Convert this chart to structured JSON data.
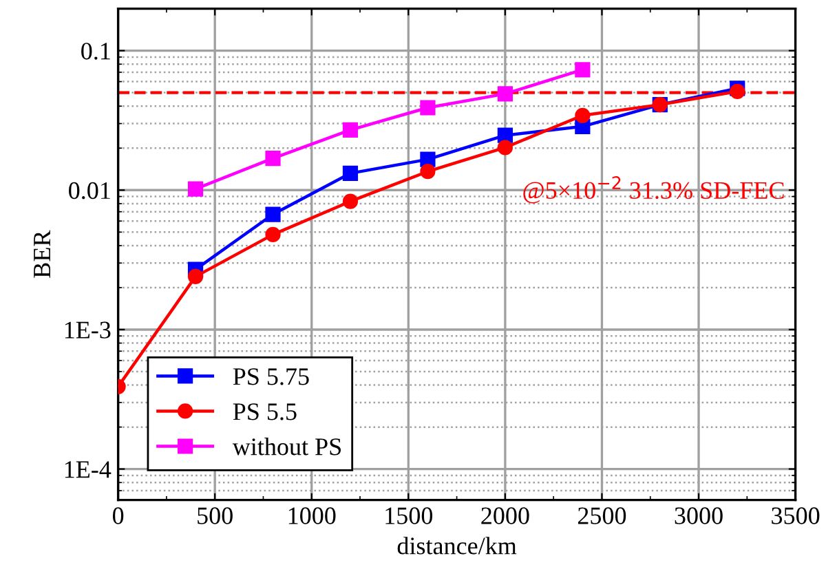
{
  "chart_data": {
    "type": "line",
    "xlabel": "distance/km",
    "ylabel": "BER",
    "log": "y",
    "xlim": [
      0,
      3500
    ],
    "xticks": [
      0,
      500,
      1000,
      1500,
      2000,
      2500,
      3000,
      3500
    ],
    "ylim": [
      6e-05,
      0.2
    ],
    "yticks": [
      {
        "value": 0.1,
        "label": "0.1"
      },
      {
        "value": 0.01,
        "label": "0.01"
      },
      {
        "value": 0.001,
        "label": "1E-3"
      },
      {
        "value": 0.0001,
        "label": "1E-4"
      }
    ],
    "grid": true,
    "legend": "bottom left",
    "line_style": "solid",
    "series": [
      {
        "name": "PS 5.75",
        "color": "#0000ff",
        "marker": "square",
        "x": [
          400,
          800,
          1200,
          1600,
          2000,
          2400,
          2800,
          3200
        ],
        "values": [
          0.0027,
          0.0067,
          0.0132,
          0.0166,
          0.0247,
          0.0286,
          0.041,
          0.0537
        ]
      },
      {
        "name": "PS 5.5",
        "color": "#ff0000",
        "marker": "circle",
        "x": [
          0,
          400,
          800,
          1200,
          1600,
          2000,
          2400,
          2800,
          3200
        ],
        "values": [
          0.00039,
          0.0024,
          0.0048,
          0.0083,
          0.0136,
          0.0202,
          0.0343,
          0.041,
          0.051
        ]
      },
      {
        "name": "without PS",
        "color": "#ff00ff",
        "marker": "square",
        "x": [
          400,
          800,
          1200,
          1600,
          2000,
          2400
        ],
        "values": [
          0.0102,
          0.0169,
          0.027,
          0.039,
          0.049,
          0.073
        ]
      }
    ],
    "ref_lines": [
      {
        "axis": "y",
        "value": 0.05,
        "label": "@5×10$^{−2}$ 31.3% SD-FEC",
        "color": "#ff0000",
        "line_style": "dashed"
      }
    ]
  }
}
